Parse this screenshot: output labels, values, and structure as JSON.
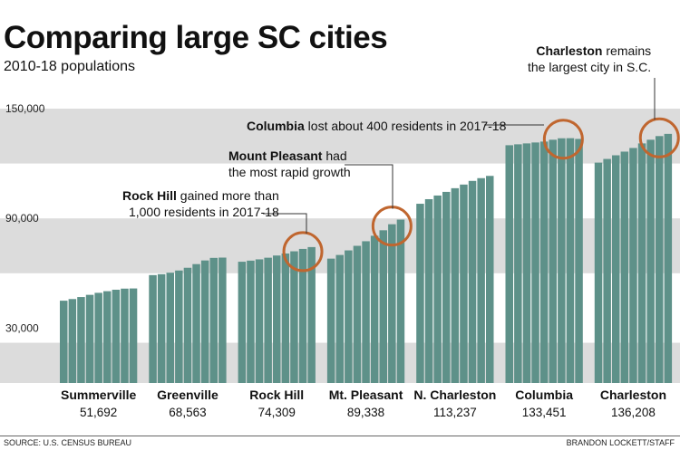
{
  "title": "Comparing large SC cities",
  "subtitle": "2010-18 populations",
  "source": "SOURCE: U.S. CENSUS BUREAU",
  "credit": "BRANDON LOCKETT/STAFF",
  "annotations": {
    "charleston": {
      "bold": "Charleston",
      "rest": " remains",
      "line2": "the largest city in S.C."
    },
    "columbia": {
      "bold": "Columbia",
      "rest": " lost about 400 residents in 2017-18"
    },
    "mount_pleasant": {
      "bold": "Mount Pleasant",
      "rest": " had",
      "line2": "the most rapid growth"
    },
    "rock_hill": {
      "bold": "Rock Hill",
      "rest": " gained more than",
      "line2": "1,000 residents in 2017-18"
    }
  },
  "colors": {
    "bar": "#5e9189",
    "band": "#dcdcdc",
    "circle": "#c0662f",
    "leader": "#333333"
  },
  "chart_data": {
    "type": "bar",
    "title": "Comparing large SC cities",
    "subtitle": "2010-18 populations",
    "years": [
      "2010",
      "2011",
      "2012",
      "2013",
      "2014",
      "2015",
      "2016",
      "2017",
      "2018"
    ],
    "ylim": [
      0,
      160000
    ],
    "yticks": [
      30000,
      90000,
      150000
    ],
    "ytick_labels": [
      "30,000",
      "90,000",
      "150,000"
    ],
    "grid_bands": [
      [
        0,
        22000
      ],
      [
        60000,
        90000
      ],
      [
        120000,
        150000
      ]
    ],
    "series": [
      {
        "name": "Summerville",
        "label": "51,692",
        "values": [
          45000,
          45900,
          47000,
          48200,
          49300,
          50200,
          51000,
          51600,
          51692
        ]
      },
      {
        "name": "Greenville",
        "label": "68,563",
        "values": [
          59000,
          59500,
          60300,
          61500,
          63000,
          65000,
          67000,
          68400,
          68563
        ]
      },
      {
        "name": "Rock Hill",
        "label": "74,309",
        "values": [
          66300,
          66900,
          67600,
          68500,
          69700,
          70800,
          72000,
          73300,
          74309
        ]
      },
      {
        "name": "Mt. Pleasant",
        "label": "89,338",
        "values": [
          68000,
          70000,
          72500,
          75000,
          77500,
          80500,
          83500,
          86800,
          89338
        ]
      },
      {
        "name": "N. Charleston",
        "label": "113,237",
        "values": [
          98000,
          100500,
          102500,
          104500,
          106500,
          108500,
          110500,
          112000,
          113237
        ]
      },
      {
        "name": "Columbia",
        "label": "133,451",
        "values": [
          130000,
          130500,
          131000,
          131500,
          132000,
          133000,
          133800,
          133850,
          133451
        ]
      },
      {
        "name": "Charleston",
        "label": "136,208",
        "values": [
          120500,
          122500,
          124500,
          126500,
          128500,
          131000,
          133000,
          135000,
          136208
        ]
      }
    ]
  }
}
